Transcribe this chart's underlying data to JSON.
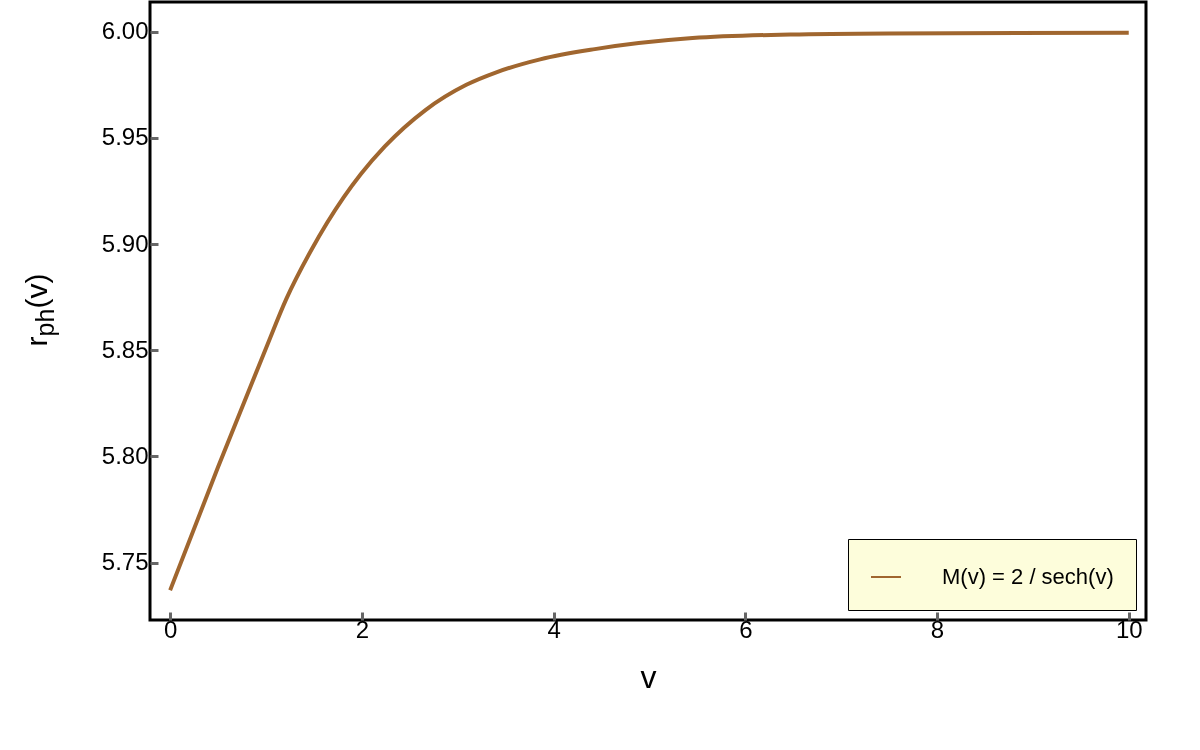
{
  "chart_data": {
    "type": "line",
    "xlabel": "v",
    "ylabel": "r$_{ph}$(v)",
    "x": [
      0,
      0.5,
      1,
      1.21,
      1.47,
      1.81,
      1.99,
      2.24,
      2.66,
      3.09,
      3.41,
      3.86,
      4.43,
      5.45,
      6.47,
      7.49,
      10
    ],
    "series": [
      {
        "name": "M(v) = 2 / sech(v)",
        "color": "#a0662f",
        "values": [
          5.737,
          5.795,
          5.851,
          5.874,
          5.897,
          5.922,
          5.933,
          5.946,
          5.963,
          5.975,
          5.981,
          5.987,
          5.9918,
          5.997,
          5.9987,
          5.9992,
          5.9995
        ]
      }
    ],
    "xlim": [
      -0.21,
      10.18
    ],
    "ylim": [
      5.723,
      6.014
    ],
    "xticks": [
      0,
      2,
      4,
      6,
      8,
      10
    ],
    "yticks": [
      {
        "value": 5.75,
        "label": "5.75"
      },
      {
        "value": 5.8,
        "label": "5.80"
      },
      {
        "value": 5.85,
        "label": "5.85"
      },
      {
        "value": 5.9,
        "label": "5.90"
      },
      {
        "value": 5.95,
        "label": "5.95"
      },
      {
        "value": 6,
        "label": "6.00"
      }
    ],
    "grid": false,
    "legend": "bottom right",
    "line_style": "solid",
    "marker": "none"
  }
}
